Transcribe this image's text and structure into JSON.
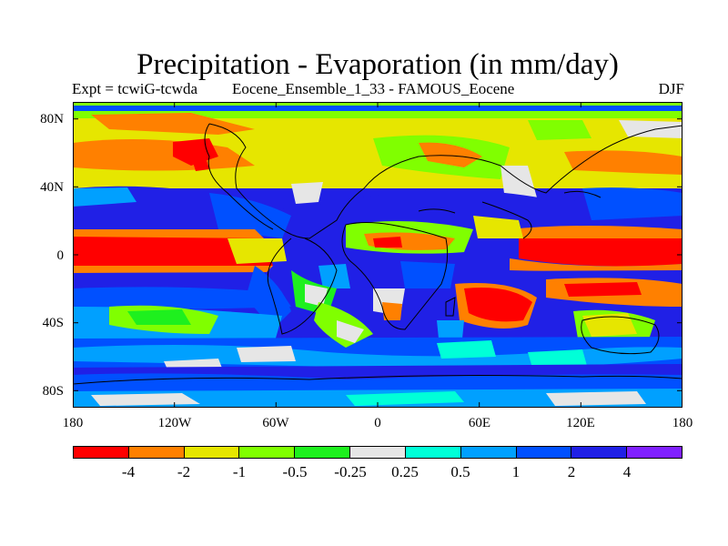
{
  "title": "Precipitation - Evaporation (in mm/day)",
  "subtitle_left": "Expt = tcwiG-tcwda",
  "subtitle_center": "Eocene_Ensemble_1_33 - FAMOUS_Eocene",
  "subtitle_right": "DJF",
  "y_ticks": [
    "80N",
    "40N",
    "0",
    "40S",
    "80S"
  ],
  "x_ticks": [
    "180",
    "120W",
    "60W",
    "0",
    "60E",
    "120E",
    "180"
  ],
  "legend": {
    "colors": [
      "#ff0000",
      "#ff8000",
      "#e6e600",
      "#80ff00",
      "#1ef01e",
      "#e6e6e6",
      "#00ffd8",
      "#00a0ff",
      "#0050ff",
      "#2020e6",
      "#8020ff"
    ],
    "labels": [
      "-4",
      "-2",
      "-1",
      "-0.5",
      "-0.25",
      "0.25",
      "0.5",
      "1",
      "2",
      "4"
    ]
  }
}
